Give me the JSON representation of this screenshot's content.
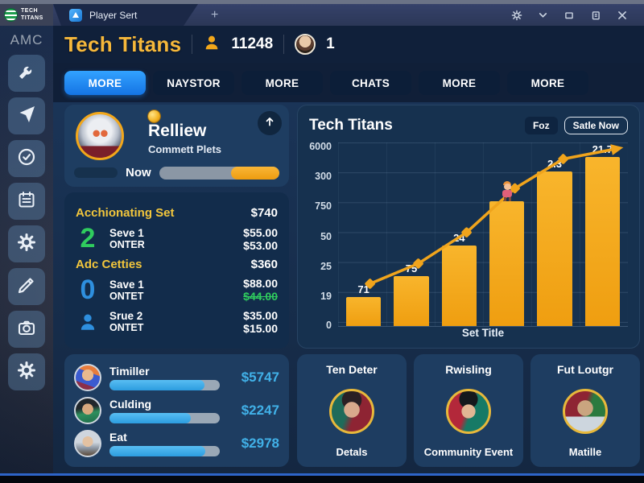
{
  "window": {
    "brand": {
      "line1": "TECH",
      "line2": "TITANS"
    },
    "tab_title": "Player Sert",
    "new_tab_label": "+"
  },
  "sidebar": {
    "label": "AMC",
    "items": [
      "wrench",
      "send",
      "check-circle",
      "calendar",
      "gear",
      "pencil",
      "camera",
      "gear"
    ]
  },
  "header": {
    "title": "Tech Titans",
    "players_count": "11248",
    "online_count": "1"
  },
  "nav": {
    "tabs": [
      {
        "label": "MORE",
        "active": true
      },
      {
        "label": "NAYSTOR",
        "active": false
      },
      {
        "label": "MORE",
        "active": false
      },
      {
        "label": "CHATS",
        "active": false
      },
      {
        "label": "MORE",
        "active": false
      },
      {
        "label": "MORE",
        "active": false
      }
    ]
  },
  "profile": {
    "name": "Relliew",
    "subtitle": "Commett Plets",
    "progress_label": "Now",
    "progress_pct": 40
  },
  "stats": {
    "sections": [
      {
        "title": "Acchionating Set",
        "value": "$740",
        "rows": [
          {
            "num": "2",
            "label1": "Seve 1",
            "label2": "ONTER",
            "val1": "$55.00",
            "val2": "$53.00"
          }
        ]
      },
      {
        "title": "Adc Cetties",
        "value": "$360",
        "rows": [
          {
            "num": "0",
            "label1": "Save 1",
            "label2": "ONTET",
            "val1": "$88.00",
            "val2": "$44.00"
          },
          {
            "icon": "person",
            "label1": "Srue 2",
            "label2": "ONTET",
            "val1": "$35.00",
            "val2": "$15.00"
          }
        ]
      }
    ]
  },
  "earners": {
    "rows": [
      {
        "name": "Timiller",
        "value": "$5747",
        "pct": 86
      },
      {
        "name": "Culding",
        "value": "$2247",
        "pct": 74
      },
      {
        "name": "Eat",
        "value": "$2978",
        "pct": 87
      }
    ]
  },
  "chart_data": {
    "type": "bar",
    "title": "Tech Titans",
    "buttons": [
      {
        "label": "Foz"
      },
      {
        "label": "Satle Now"
      }
    ],
    "y_ticks": [
      "6000",
      "300",
      "750",
      "50",
      "25",
      "19",
      "0"
    ],
    "bar_labels": [
      "71",
      "75",
      "24",
      "",
      "2.3",
      "21.7"
    ],
    "values": [
      71,
      75,
      24,
      null,
      2.3,
      21.7
    ],
    "values_pct": [
      16,
      27,
      44,
      68,
      84,
      92
    ],
    "xlabel": "Set Title",
    "grid": true,
    "legend": false,
    "overlay": "rising line with diamond markers ending in arrow",
    "mascot_on_bar_index": 3,
    "bar_color": "#F5A91F",
    "line_color": "#F0A41C"
  },
  "cards": [
    {
      "title": "Ten Deter",
      "caption": "Detals"
    },
    {
      "title": "Rwisling",
      "caption": "Community Event"
    },
    {
      "title": "Fut Loutgr",
      "caption": "Matille"
    }
  ],
  "colors": {
    "accent_orange": "#F5A91F",
    "accent_blue": "#1E8EF0",
    "money_cyan": "#41B1E8",
    "positive_green": "#2FCC5E",
    "header_gold": "#F6B83B"
  }
}
